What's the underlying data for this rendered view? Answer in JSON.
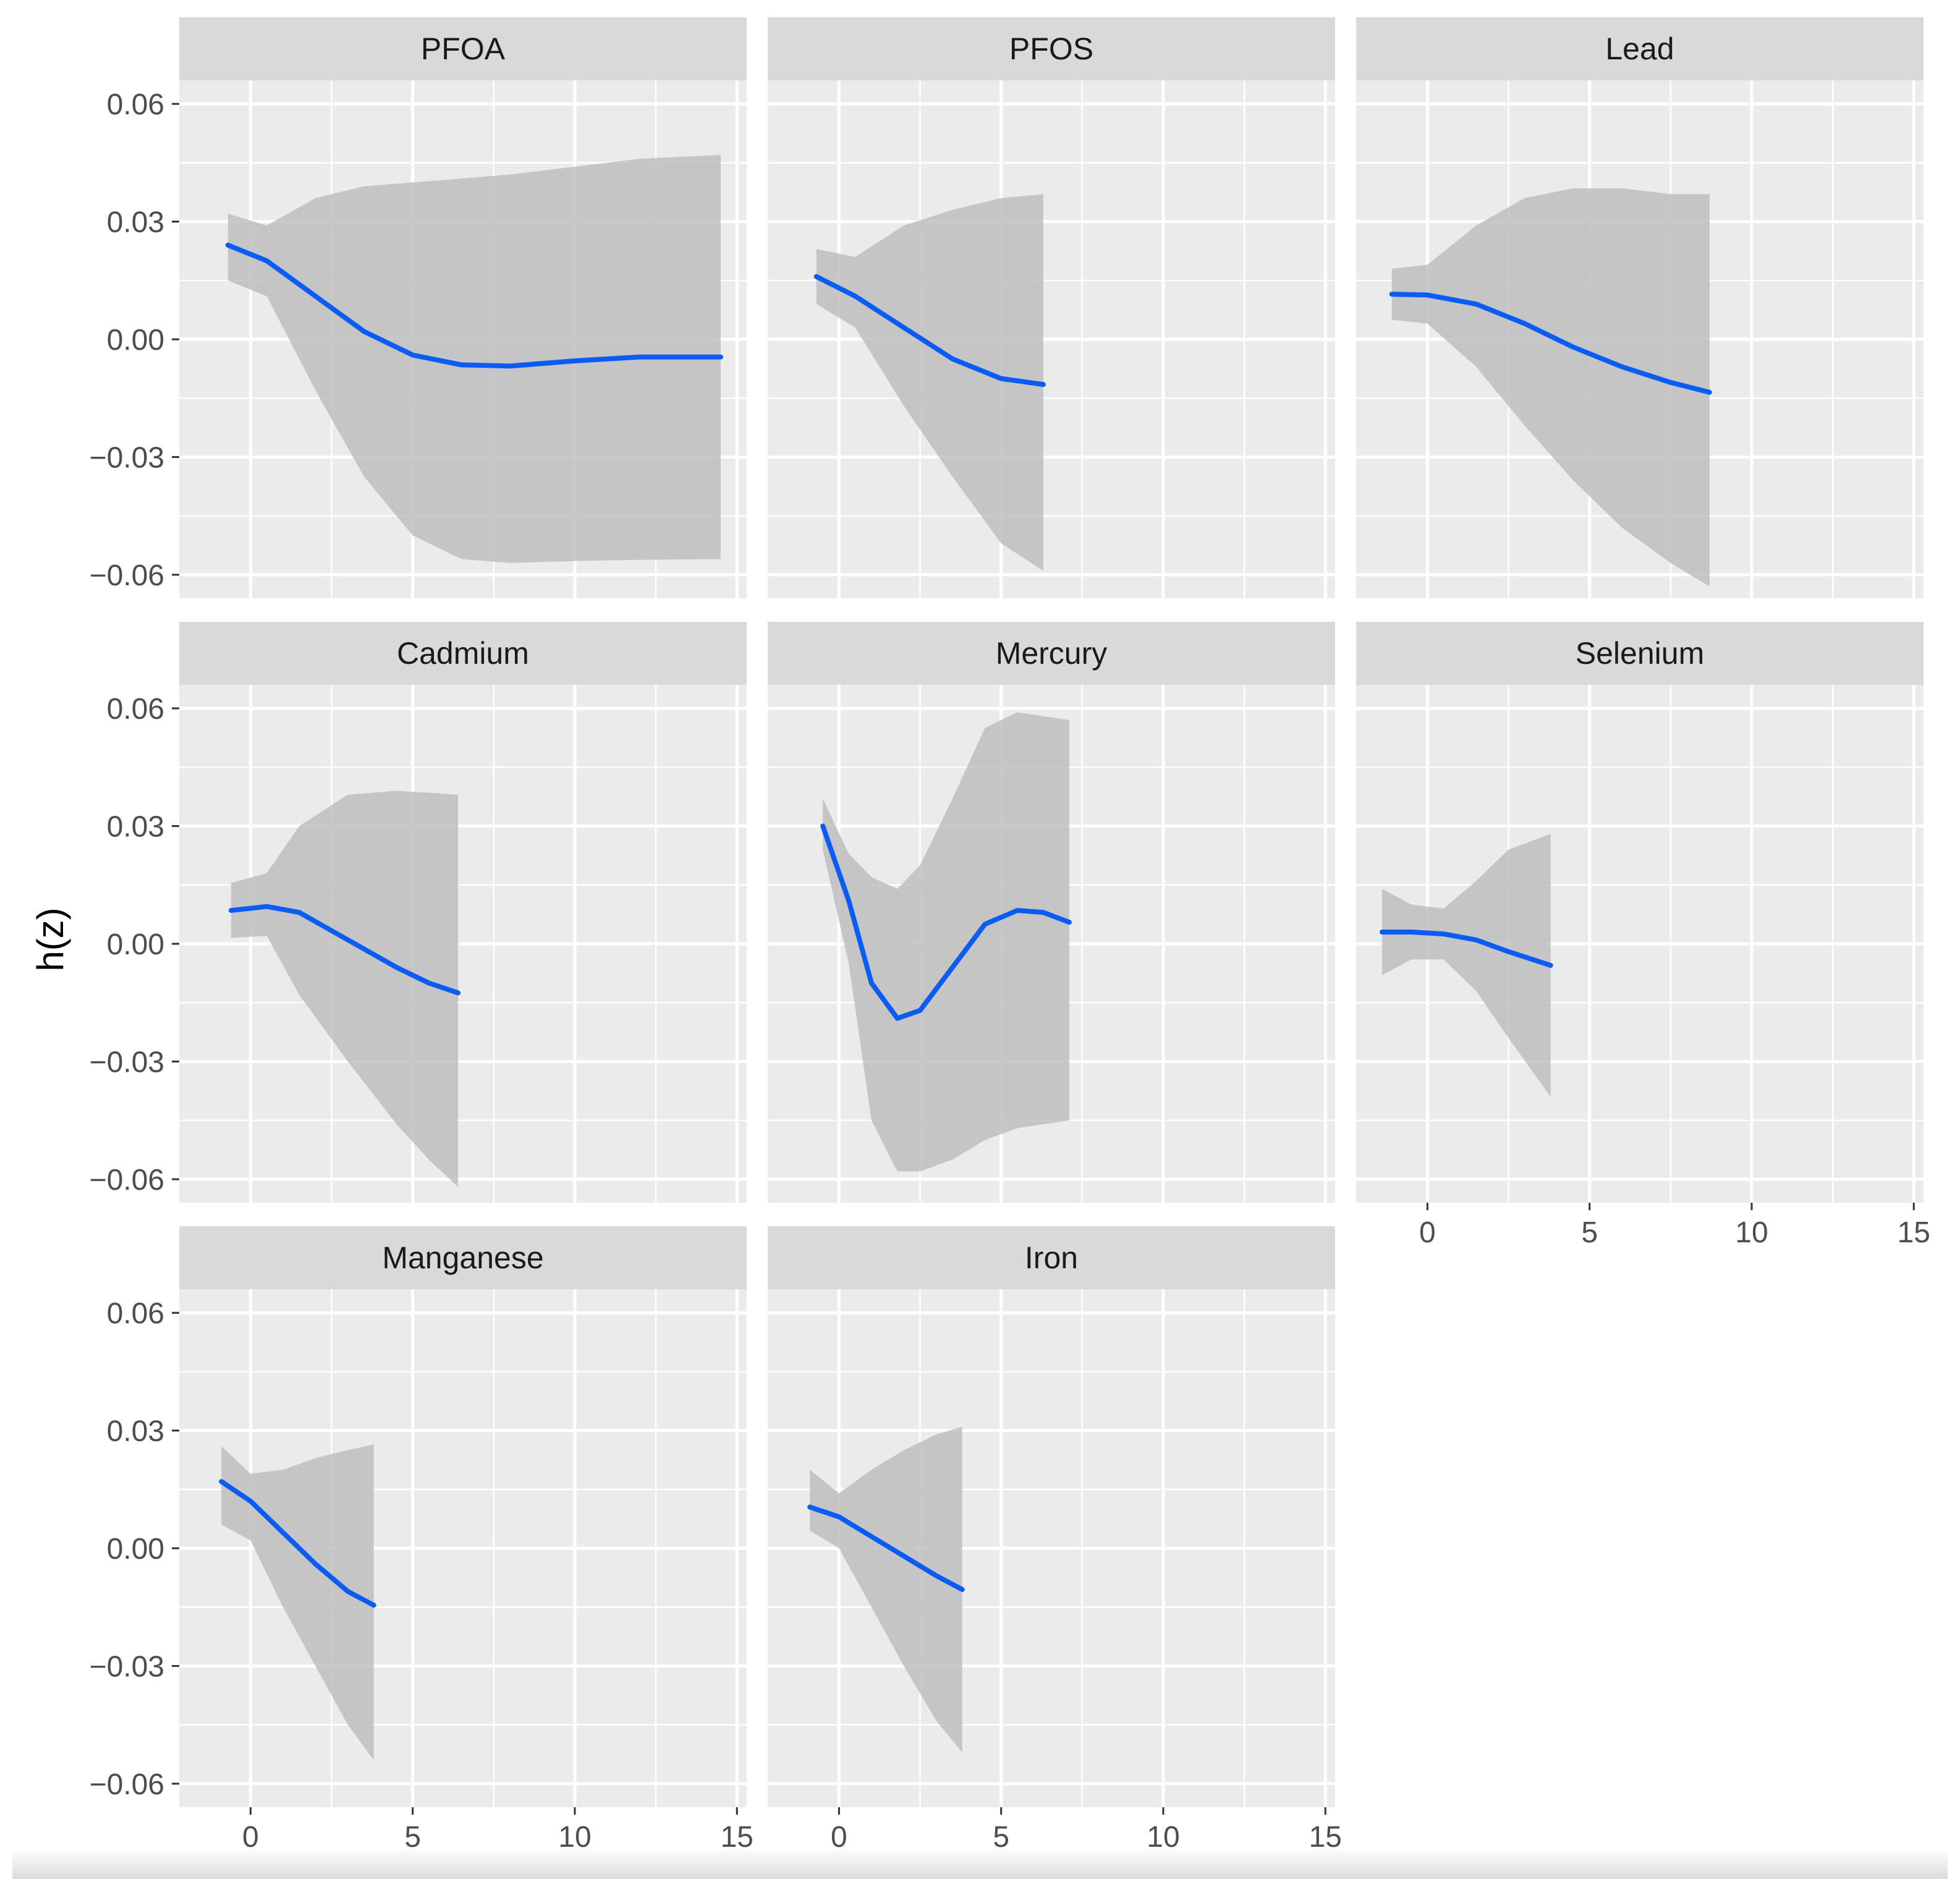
{
  "chart_data": {
    "type": "line",
    "facet_layout": "3 columns",
    "ylabel": "h(z)",
    "xlabel": "",
    "xlim": [
      -2.2,
      15.3
    ],
    "ylim": [
      -0.066,
      0.066
    ],
    "x_ticks": [
      0,
      5,
      10,
      15
    ],
    "x_tick_labels": [
      "0",
      "5",
      "10",
      "15"
    ],
    "y_ticks": [
      0.06,
      0.03,
      0.0,
      -0.03,
      -0.06
    ],
    "y_tick_labels": [
      "0.06",
      "0.03",
      "0.00",
      "−0.03",
      "−0.06"
    ],
    "grid": true,
    "panel_background": "#ebebeb",
    "strip_background": "#d9d9d9",
    "line_color": "#0a5cf5",
    "ribbon_color": "#bebebe",
    "panels": [
      {
        "name": "PFOA",
        "x": [
          -0.7,
          0.5,
          2.0,
          3.5,
          5.0,
          6.5,
          8.0,
          10.0,
          12.0,
          14.5
        ],
        "y": [
          0.024,
          0.02,
          0.011,
          0.002,
          -0.004,
          -0.0065,
          -0.0068,
          -0.0055,
          -0.0045,
          -0.0045
        ],
        "lower": [
          0.015,
          0.011,
          -0.013,
          -0.035,
          -0.05,
          -0.056,
          -0.057,
          -0.0565,
          -0.0562,
          -0.056
        ],
        "upper": [
          0.032,
          0.029,
          0.036,
          0.039,
          0.04,
          0.041,
          0.042,
          0.044,
          0.046,
          0.047
        ]
      },
      {
        "name": "PFOS",
        "x": [
          -0.7,
          0.5,
          2.0,
          3.5,
          5.0,
          6.3
        ],
        "y": [
          0.016,
          0.011,
          0.003,
          -0.005,
          -0.01,
          -0.0115
        ],
        "lower": [
          0.009,
          0.003,
          -0.017,
          -0.035,
          -0.052,
          -0.059
        ],
        "upper": [
          0.023,
          0.021,
          0.029,
          0.033,
          0.036,
          0.037
        ]
      },
      {
        "name": "Lead",
        "x": [
          -1.1,
          0.0,
          1.5,
          3.0,
          4.5,
          6.0,
          7.5,
          8.7
        ],
        "y": [
          0.0115,
          0.0113,
          0.009,
          0.004,
          -0.002,
          -0.007,
          -0.011,
          -0.0135
        ],
        "lower": [
          0.005,
          0.004,
          -0.007,
          -0.022,
          -0.036,
          -0.048,
          -0.057,
          -0.063
        ],
        "upper": [
          0.018,
          0.019,
          0.029,
          0.036,
          0.0385,
          0.0385,
          0.037,
          0.037
        ]
      },
      {
        "name": "Cadmium",
        "x": [
          -0.6,
          0.5,
          1.5,
          3.0,
          4.5,
          5.5,
          6.4
        ],
        "y": [
          0.0085,
          0.0095,
          0.008,
          0.001,
          -0.006,
          -0.01,
          -0.0125
        ],
        "lower": [
          0.0015,
          0.002,
          -0.013,
          -0.03,
          -0.046,
          -0.055,
          -0.062
        ],
        "upper": [
          0.0155,
          0.018,
          0.03,
          0.038,
          0.039,
          0.0385,
          0.038
        ]
      },
      {
        "name": "Mercury",
        "x": [
          -0.5,
          0.3,
          1.0,
          1.8,
          2.5,
          3.5,
          4.5,
          5.5,
          6.3,
          7.1
        ],
        "y": [
          0.03,
          0.011,
          -0.01,
          -0.019,
          -0.017,
          -0.006,
          0.005,
          0.0085,
          0.008,
          0.0055
        ],
        "lower": [
          0.024,
          -0.005,
          -0.045,
          -0.058,
          -0.058,
          -0.055,
          -0.05,
          -0.047,
          -0.046,
          -0.045
        ],
        "upper": [
          0.037,
          0.023,
          0.017,
          0.014,
          0.02,
          0.037,
          0.055,
          0.059,
          0.058,
          0.057
        ]
      },
      {
        "name": "Selenium",
        "x": [
          -1.4,
          -0.5,
          0.5,
          1.5,
          2.5,
          3.8
        ],
        "y": [
          0.003,
          0.003,
          0.0025,
          0.001,
          -0.002,
          -0.0055
        ],
        "lower": [
          -0.008,
          -0.004,
          -0.004,
          -0.012,
          -0.024,
          -0.039
        ],
        "upper": [
          0.014,
          0.01,
          0.009,
          0.016,
          0.024,
          0.028
        ]
      },
      {
        "name": "Manganese",
        "x": [
          -0.9,
          0.0,
          1.0,
          2.0,
          3.0,
          3.8
        ],
        "y": [
          0.017,
          0.012,
          0.004,
          -0.004,
          -0.011,
          -0.0145
        ],
        "lower": [
          0.006,
          0.002,
          -0.015,
          -0.03,
          -0.045,
          -0.054
        ],
        "upper": [
          0.026,
          0.019,
          0.02,
          0.023,
          0.025,
          0.0265
        ]
      },
      {
        "name": "Iron",
        "x": [
          -0.9,
          0.0,
          1.0,
          2.0,
          3.0,
          3.8
        ],
        "y": [
          0.0105,
          0.008,
          0.003,
          -0.002,
          -0.007,
          -0.0105
        ],
        "lower": [
          0.0045,
          0.0,
          -0.015,
          -0.03,
          -0.044,
          -0.052
        ],
        "upper": [
          0.02,
          0.014,
          0.02,
          0.025,
          0.029,
          0.031
        ]
      }
    ]
  }
}
